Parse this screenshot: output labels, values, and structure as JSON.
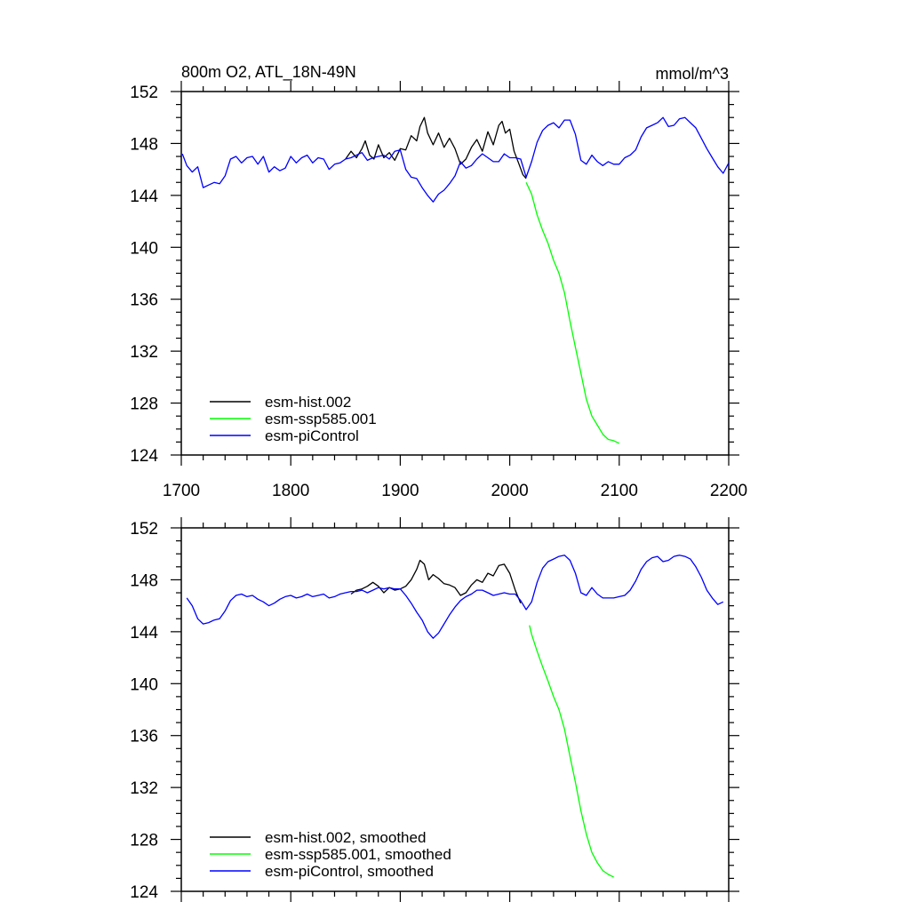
{
  "chart_data": [
    {
      "type": "line",
      "title": "800m O2, ATL_18N-49N",
      "units": "mmol/m^3",
      "xlim": [
        1700,
        2200
      ],
      "ylim": [
        124,
        152
      ],
      "x_ticks": [
        1700,
        1800,
        1900,
        2000,
        2100,
        2200
      ],
      "x_tick_labels": [
        "1700",
        "1800",
        "1900",
        "2000",
        "2100",
        "2200"
      ],
      "y_ticks": [
        124,
        128,
        132,
        136,
        140,
        144,
        148,
        152
      ],
      "y_tick_labels": [
        "124",
        "128",
        "132",
        "136",
        "140",
        "144",
        "148",
        "152"
      ],
      "grid": false,
      "legend_position": "bottom-left",
      "series": [
        {
          "name": "esm-hist.002",
          "color": "#000000",
          "x": [
            1850,
            1855,
            1860,
            1865,
            1868,
            1872,
            1876,
            1880,
            1885,
            1890,
            1895,
            1900,
            1905,
            1910,
            1915,
            1918,
            1922,
            1925,
            1930,
            1935,
            1940,
            1945,
            1950,
            1955,
            1960,
            1965,
            1970,
            1975,
            1980,
            1985,
            1990,
            1993,
            1996,
            2000,
            2004,
            2008,
            2012,
            2015
          ],
          "y": [
            146.8,
            147.4,
            146.9,
            147.6,
            148.2,
            147.1,
            146.8,
            147.9,
            146.9,
            147.3,
            146.7,
            147.6,
            147.5,
            148.6,
            148.2,
            149.3,
            150.0,
            148.8,
            147.9,
            148.8,
            147.7,
            148.4,
            147.6,
            146.4,
            146.8,
            147.7,
            148.3,
            147.4,
            148.9,
            147.9,
            149.4,
            149.7,
            148.8,
            149.1,
            147.4,
            146.5,
            145.6,
            145.3
          ]
        },
        {
          "name": "esm-ssp585.001",
          "color": "#00ff00",
          "x": [
            2015,
            2020,
            2025,
            2030,
            2035,
            2040,
            2045,
            2050,
            2055,
            2060,
            2065,
            2070,
            2075,
            2080,
            2085,
            2090,
            2095,
            2100
          ],
          "y": [
            145.0,
            144.1,
            142.5,
            141.3,
            140.3,
            139.0,
            138.0,
            136.5,
            134.3,
            132.3,
            130.3,
            128.3,
            127.0,
            126.3,
            125.6,
            125.2,
            125.1,
            124.9
          ]
        },
        {
          "name": "esm-piControl",
          "color": "#0000ff",
          "x": [
            1701,
            1705,
            1710,
            1715,
            1720,
            1725,
            1730,
            1735,
            1740,
            1745,
            1750,
            1755,
            1760,
            1765,
            1770,
            1775,
            1780,
            1785,
            1790,
            1795,
            1800,
            1805,
            1810,
            1815,
            1820,
            1825,
            1830,
            1835,
            1840,
            1845,
            1850,
            1855,
            1860,
            1865,
            1870,
            1875,
            1880,
            1885,
            1890,
            1895,
            1900,
            1905,
            1910,
            1915,
            1920,
            1925,
            1930,
            1935,
            1940,
            1945,
            1950,
            1955,
            1960,
            1965,
            1970,
            1975,
            1980,
            1985,
            1990,
            1995,
            2000,
            2005,
            2010,
            2015,
            2020,
            2025,
            2030,
            2035,
            2040,
            2045,
            2050,
            2055,
            2060,
            2065,
            2070,
            2075,
            2080,
            2085,
            2090,
            2095,
            2100,
            2105,
            2110,
            2115,
            2120,
            2125,
            2130,
            2135,
            2140,
            2145,
            2150,
            2155,
            2160,
            2165,
            2170,
            2175,
            2180,
            2185,
            2190,
            2195,
            2200
          ],
          "y": [
            147.2,
            146.3,
            145.8,
            146.2,
            144.6,
            144.8,
            145.0,
            144.9,
            145.5,
            146.8,
            147.0,
            146.5,
            146.9,
            147.0,
            146.4,
            147.0,
            145.8,
            146.2,
            145.9,
            146.1,
            147.0,
            146.5,
            146.9,
            147.1,
            146.5,
            146.9,
            146.8,
            146.0,
            146.4,
            146.5,
            146.8,
            146.9,
            147.1,
            147.3,
            146.7,
            146.9,
            147.0,
            147.1,
            146.8,
            147.4,
            147.5,
            146.0,
            145.4,
            145.3,
            144.6,
            144.0,
            143.5,
            144.1,
            144.4,
            144.9,
            145.5,
            146.6,
            146.1,
            146.3,
            146.8,
            147.2,
            146.9,
            146.6,
            146.6,
            147.2,
            146.9,
            146.9,
            146.8,
            145.4,
            146.6,
            148.1,
            149.0,
            149.4,
            149.6,
            149.2,
            149.8,
            149.8,
            148.7,
            146.7,
            146.4,
            147.1,
            146.6,
            146.3,
            146.6,
            146.4,
            146.4,
            146.9,
            147.1,
            147.5,
            148.5,
            149.2,
            149.4,
            149.6,
            150.0,
            149.3,
            149.4,
            149.9,
            150.0,
            149.6,
            149.2,
            148.4,
            147.6,
            146.9,
            146.2,
            145.7,
            146.5
          ]
        }
      ]
    },
    {
      "type": "line",
      "title": "",
      "xlim": [
        1700,
        2200
      ],
      "ylim": [
        124,
        152
      ],
      "y_ticks": [
        124,
        128,
        132,
        136,
        140,
        144,
        148,
        152
      ],
      "y_tick_labels": [
        "124",
        "128",
        "132",
        "136",
        "140",
        "144",
        "148",
        "152"
      ],
      "grid": false,
      "legend_position": "bottom-left",
      "series": [
        {
          "name": "esm-hist.002, smoothed",
          "color": "#000000",
          "x": [
            1855,
            1860,
            1865,
            1870,
            1875,
            1880,
            1885,
            1890,
            1895,
            1900,
            1905,
            1910,
            1915,
            1918,
            1922,
            1926,
            1930,
            1935,
            1940,
            1945,
            1950,
            1955,
            1960,
            1965,
            1970,
            1975,
            1980,
            1985,
            1990,
            1995,
            2000,
            2005,
            2010
          ],
          "y": [
            146.9,
            147.2,
            147.3,
            147.5,
            147.8,
            147.5,
            147.0,
            147.4,
            147.2,
            147.3,
            147.5,
            148.0,
            148.8,
            149.5,
            149.2,
            148.0,
            148.4,
            148.1,
            147.7,
            147.6,
            147.4,
            146.8,
            147.0,
            147.6,
            148.0,
            147.8,
            148.5,
            148.3,
            149.1,
            149.2,
            148.5,
            147.2,
            146.2
          ]
        },
        {
          "name": "esm-ssp585.001, smoothed",
          "color": "#00ff00",
          "x": [
            2018,
            2020,
            2025,
            2030,
            2035,
            2040,
            2045,
            2050,
            2055,
            2060,
            2065,
            2070,
            2075,
            2080,
            2085,
            2090,
            2095
          ],
          "y": [
            144.5,
            143.8,
            142.5,
            141.3,
            140.2,
            139.0,
            138.0,
            136.5,
            134.4,
            132.4,
            130.2,
            128.4,
            127.0,
            126.2,
            125.6,
            125.3,
            125.1
          ]
        },
        {
          "name": "esm-piControl, smoothed",
          "color": "#0000ff",
          "x": [
            1705,
            1710,
            1715,
            1720,
            1725,
            1730,
            1735,
            1740,
            1745,
            1750,
            1755,
            1760,
            1765,
            1770,
            1775,
            1780,
            1785,
            1790,
            1795,
            1800,
            1805,
            1810,
            1815,
            1820,
            1825,
            1830,
            1835,
            1840,
            1845,
            1850,
            1855,
            1860,
            1865,
            1870,
            1875,
            1880,
            1885,
            1890,
            1895,
            1900,
            1905,
            1910,
            1915,
            1920,
            1925,
            1930,
            1935,
            1940,
            1945,
            1950,
            1955,
            1960,
            1965,
            1970,
            1975,
            1980,
            1985,
            1990,
            1995,
            2000,
            2005,
            2010,
            2015,
            2020,
            2025,
            2030,
            2035,
            2040,
            2045,
            2050,
            2055,
            2060,
            2065,
            2070,
            2075,
            2080,
            2085,
            2090,
            2095,
            2100,
            2105,
            2110,
            2115,
            2120,
            2125,
            2130,
            2135,
            2140,
            2145,
            2150,
            2155,
            2160,
            2165,
            2170,
            2175,
            2180,
            2185,
            2190,
            2195
          ],
          "y": [
            146.6,
            146.0,
            145.0,
            144.6,
            144.7,
            144.9,
            145.0,
            145.6,
            146.4,
            146.8,
            146.9,
            146.7,
            146.8,
            146.5,
            146.3,
            146.0,
            146.2,
            146.5,
            146.7,
            146.8,
            146.6,
            146.7,
            146.9,
            146.7,
            146.8,
            146.9,
            146.6,
            146.7,
            146.9,
            147.0,
            147.1,
            147.1,
            147.2,
            147.0,
            147.2,
            147.4,
            147.3,
            147.4,
            147.3,
            147.3,
            146.8,
            146.2,
            145.5,
            144.9,
            144.0,
            143.5,
            143.9,
            144.6,
            145.3,
            145.9,
            146.4,
            146.7,
            146.9,
            147.2,
            147.2,
            147.0,
            146.8,
            146.9,
            147.0,
            146.9,
            146.9,
            146.4,
            145.7,
            146.3,
            147.8,
            148.9,
            149.4,
            149.6,
            149.8,
            149.9,
            149.5,
            148.5,
            147.0,
            146.8,
            147.4,
            146.9,
            146.6,
            146.6,
            146.6,
            146.7,
            146.8,
            147.2,
            147.9,
            148.8,
            149.4,
            149.7,
            149.8,
            149.4,
            149.5,
            149.8,
            149.9,
            149.8,
            149.6,
            149.0,
            148.2,
            147.2,
            146.6,
            146.1,
            146.3
          ]
        }
      ]
    }
  ]
}
